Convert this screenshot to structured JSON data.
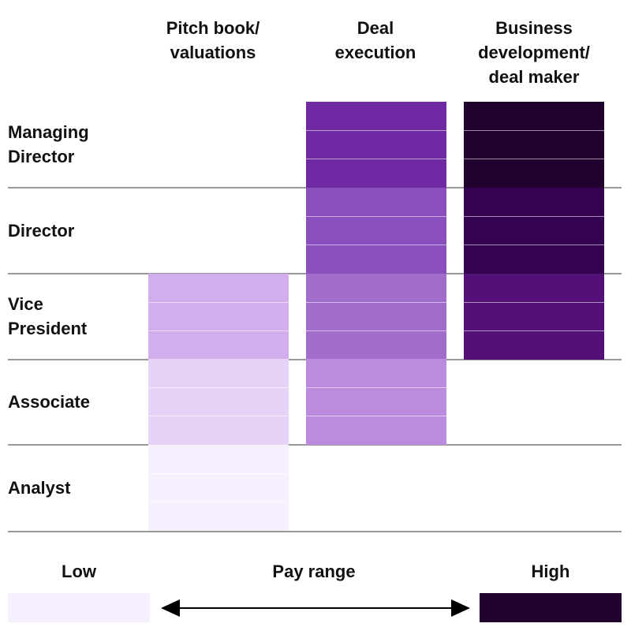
{
  "columns": [
    {
      "label": "Pitch book/\nvaluations"
    },
    {
      "label": "Deal\nexecution"
    },
    {
      "label": "Business\ndevelopment/\ndeal maker"
    }
  ],
  "rows": [
    {
      "label": "Managing\nDirector"
    },
    {
      "label": "Director"
    },
    {
      "label": "Vice\nPresident"
    },
    {
      "label": "Associate"
    },
    {
      "label": "Analyst"
    }
  ],
  "cells": {
    "pitch_book": [
      {
        "row": "Vice President",
        "color": "#d2aeed"
      },
      {
        "row": "Associate",
        "color": "#e8d3f8"
      },
      {
        "row": "Analyst",
        "color": "#f6effd"
      }
    ],
    "deal_execution": [
      {
        "row": "Managing Director",
        "color": "#6f2aa3"
      },
      {
        "row": "Director",
        "color": "#8a4ebd"
      },
      {
        "row": "Vice President",
        "color": "#a26ccc"
      },
      {
        "row": "Associate",
        "color": "#bb8bdf"
      }
    ],
    "business_development": [
      {
        "row": "Managing Director",
        "color": "#20012e"
      },
      {
        "row": "Director",
        "color": "#340450"
      },
      {
        "row": "Vice President",
        "color": "#531178"
      }
    ]
  },
  "legend": {
    "low_label": "Low",
    "range_label": "Pay range",
    "high_label": "High",
    "low_color": "#f6effd",
    "high_color": "#20012e"
  }
}
